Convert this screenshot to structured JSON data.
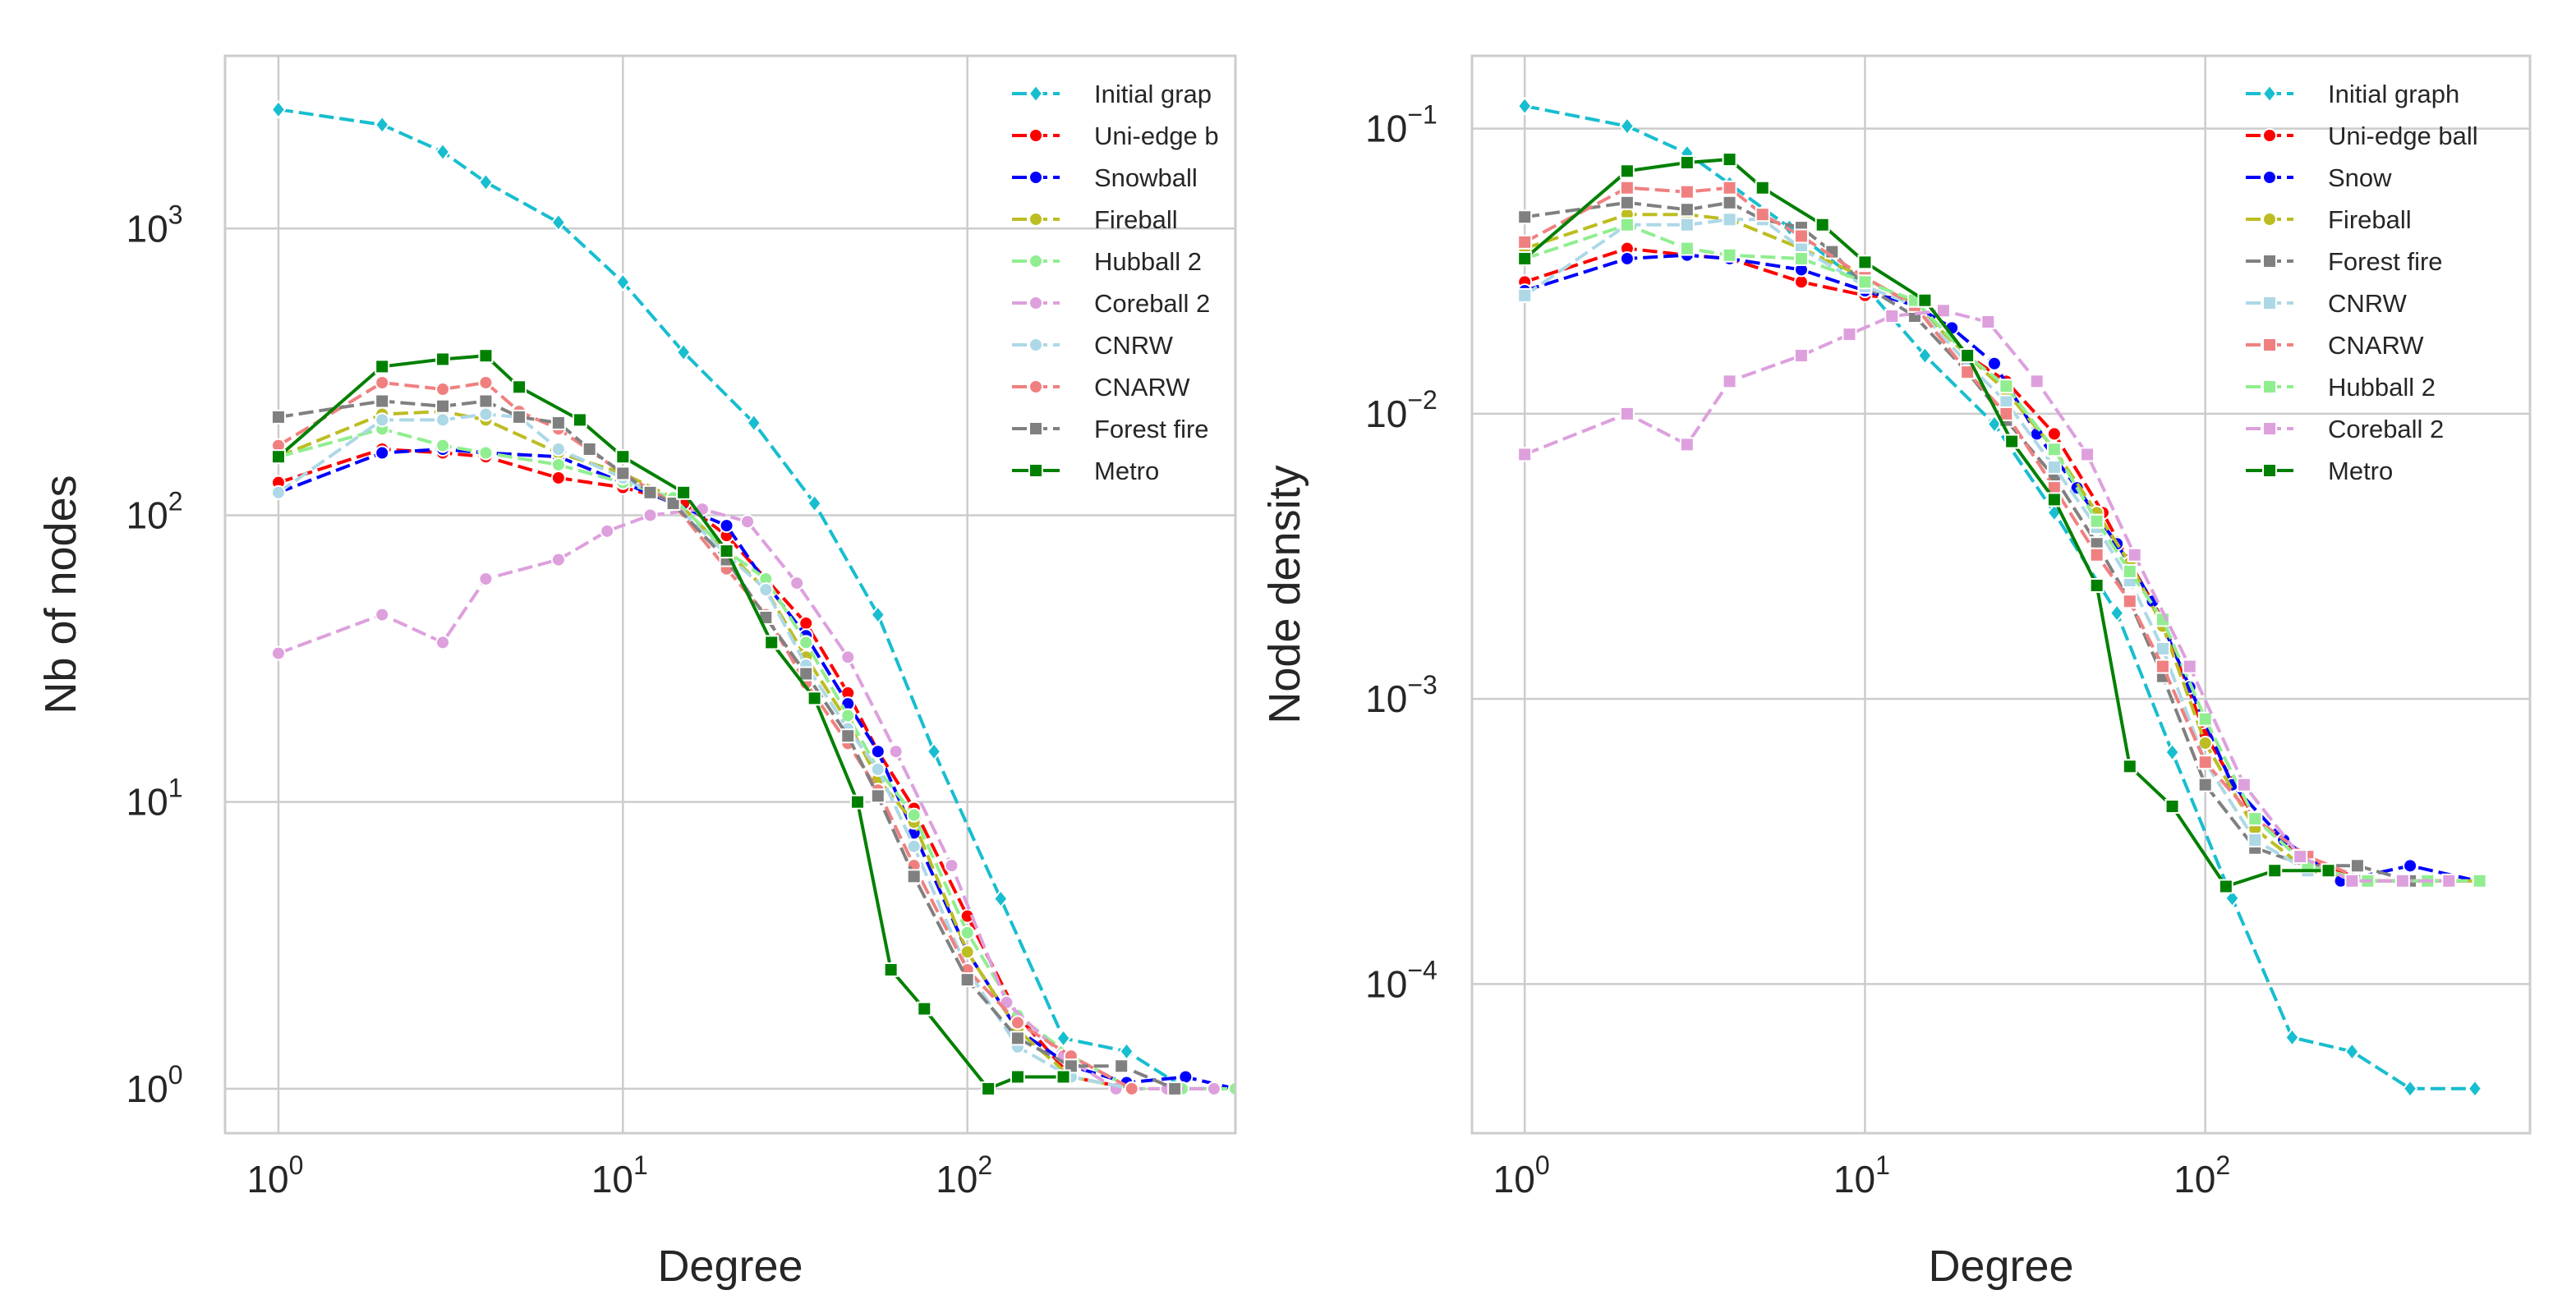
{
  "chart_data": [
    {
      "type": "line",
      "xscale": "log",
      "yscale": "log",
      "title": "",
      "xlabel": "Degree",
      "ylabel": "Nb of nodes",
      "xlim": [
        0.7,
        600
      ],
      "ylim": [
        0.7,
        4000
      ],
      "xticks": [
        {
          "value": 1,
          "base": "10",
          "exp": "0"
        },
        {
          "value": 10,
          "base": "10",
          "exp": "1"
        },
        {
          "value": 100,
          "base": "10",
          "exp": "2"
        }
      ],
      "yticks": [
        {
          "value": 1,
          "base": "10",
          "exp": "0"
        },
        {
          "value": 10,
          "base": "10",
          "exp": "1"
        },
        {
          "value": 100,
          "base": "10",
          "exp": "2"
        },
        {
          "value": 1000,
          "base": "10",
          "exp": "3"
        }
      ],
      "grid": true,
      "legend_position": "top-right",
      "series": [
        {
          "name": "Initial graph",
          "legend_label": "Initial grap",
          "color": "#17becf",
          "marker": "diamond",
          "x": [
            1,
            2,
            3,
            4,
            6.5,
            10,
            15,
            24,
            36,
            55,
            80,
            125,
            190,
            290,
            430,
            620
          ],
          "y": [
            2600,
            2300,
            1850,
            1450,
            1050,
            650,
            370,
            210,
            110,
            45,
            15,
            4.6,
            1.5,
            1.35,
            1.0,
            1.0
          ]
        },
        {
          "name": "Uni-edge ball",
          "legend_label": "Uni-edge b",
          "color": "#ff0000",
          "marker": "circle",
          "x": [
            1,
            2,
            3,
            4,
            6.5,
            10,
            15,
            20,
            26,
            34,
            45,
            55,
            70,
            100,
            140,
            200,
            300
          ],
          "y": [
            130,
            170,
            165,
            160,
            135,
            125,
            110,
            85,
            60,
            42,
            24,
            15,
            9.5,
            4.0,
            1.8,
            1.1,
            1.0
          ]
        },
        {
          "name": "Snowball",
          "legend_label": "Snowball",
          "color": "#0000ff",
          "marker": "circle",
          "x": [
            1,
            2,
            3,
            4,
            6.5,
            10,
            14,
            20,
            26,
            34,
            45,
            55,
            70,
            100,
            140,
            200,
            290,
            430,
            600
          ],
          "y": [
            120,
            165,
            170,
            165,
            160,
            130,
            110,
            92,
            58,
            38,
            22,
            15,
            7.8,
            3.0,
            1.6,
            1.2,
            1.05,
            1.1,
            1.0
          ]
        },
        {
          "name": "Fireball",
          "legend_label": "Fireball",
          "color": "#bcbd22",
          "marker": "circle",
          "x": [
            1,
            2,
            3,
            4,
            6.5,
            10,
            14,
            20,
            26,
            34,
            45,
            55,
            70,
            100,
            140,
            200,
            300
          ],
          "y": [
            160,
            225,
            230,
            215,
            165,
            140,
            115,
            75,
            55,
            32,
            19,
            12,
            8.5,
            3.0,
            1.6,
            1.1,
            1.0
          ]
        },
        {
          "name": "Hubball 2",
          "legend_label": "Hubball 2",
          "color": "#90ee90",
          "marker": "circle",
          "x": [
            1,
            2,
            3,
            4,
            6.5,
            10,
            14,
            20,
            26,
            34,
            45,
            55,
            70,
            100,
            140,
            200,
            300,
            420,
            600
          ],
          "y": [
            160,
            200,
            175,
            165,
            150,
            130,
            115,
            75,
            60,
            36,
            20,
            13,
            9.0,
            3.5,
            1.8,
            1.3,
            1.0,
            1.0,
            1.0
          ]
        },
        {
          "name": "Coreball 2",
          "legend_label": "Coreball 2",
          "color": "#dda0dd",
          "marker": "circle",
          "x": [
            1,
            2,
            3,
            4,
            6.5,
            9,
            12,
            17,
            23,
            32,
            45,
            62,
            90,
            130,
            190,
            270,
            380,
            520
          ],
          "y": [
            33,
            45,
            36,
            60,
            70,
            88,
            100,
            105,
            95,
            58,
            32,
            15,
            6.0,
            2.0,
            1.3,
            1.0,
            1.0,
            1.0
          ]
        },
        {
          "name": "CNRW",
          "legend_label": "CNRW",
          "color": "#add8e6",
          "marker": "circle",
          "x": [
            1,
            2,
            3,
            4,
            5,
            6.5,
            10,
            14,
            20,
            26,
            34,
            45,
            55,
            70,
            100,
            140,
            200,
            300
          ],
          "y": [
            120,
            215,
            215,
            225,
            220,
            170,
            135,
            110,
            73,
            55,
            30,
            18,
            13,
            7.0,
            2.6,
            1.4,
            1.1,
            1.0
          ]
        },
        {
          "name": "CNARW",
          "legend_label": "CNARW",
          "color": "#f08080",
          "marker": "circle",
          "x": [
            1,
            2,
            3,
            4,
            5,
            6.5,
            10,
            14,
            20,
            26,
            34,
            45,
            55,
            70,
            100,
            140,
            200,
            300
          ],
          "y": [
            175,
            290,
            275,
            290,
            230,
            200,
            140,
            110,
            65,
            45,
            26,
            16,
            11,
            6.0,
            2.6,
            1.7,
            1.3,
            1.0
          ]
        },
        {
          "name": "Forest fire",
          "legend_label": "Forest fire",
          "color": "#808080",
          "marker": "square",
          "x": [
            1,
            2,
            3,
            4,
            5,
            6.5,
            8,
            10,
            12,
            14,
            20,
            26,
            34,
            45,
            55,
            70,
            100,
            140,
            200,
            280,
            400
          ],
          "y": [
            220,
            250,
            240,
            250,
            220,
            210,
            170,
            140,
            120,
            110,
            70,
            44,
            28,
            17,
            10.5,
            5.5,
            2.4,
            1.5,
            1.2,
            1.2,
            1.0
          ]
        },
        {
          "name": "Metro",
          "legend_label": "Metro",
          "color": "#008000",
          "marker": "square",
          "x": [
            1,
            2,
            3,
            4,
            5,
            7.5,
            10,
            15,
            20,
            27,
            36,
            48,
            60,
            75,
            115,
            140,
            190
          ],
          "y": [
            160,
            330,
            350,
            360,
            280,
            215,
            160,
            120,
            75,
            36,
            23,
            10,
            2.6,
            1.9,
            1.0,
            1.1,
            1.1
          ]
        }
      ]
    },
    {
      "type": "line",
      "xscale": "log",
      "yscale": "log",
      "title": "",
      "xlabel": "Degree",
      "ylabel": "Node density",
      "xlim": [
        0.7,
        900
      ],
      "ylim": [
        3e-05,
        0.18
      ],
      "xticks": [
        {
          "value": 1,
          "base": "10",
          "exp": "0"
        },
        {
          "value": 10,
          "base": "10",
          "exp": "1"
        },
        {
          "value": 100,
          "base": "10",
          "exp": "2"
        }
      ],
      "yticks": [
        {
          "value": 0.0001,
          "base": "10",
          "exp": "−4"
        },
        {
          "value": 0.001,
          "base": "10",
          "exp": "−3"
        },
        {
          "value": 0.01,
          "base": "10",
          "exp": "−2"
        },
        {
          "value": 0.1,
          "base": "10",
          "exp": "−1"
        }
      ],
      "grid": true,
      "legend_position": "top-right",
      "series": [
        {
          "name": "Initial graph",
          "legend_label": "Initial graph",
          "color": "#17becf",
          "marker": "diamond",
          "x": [
            1,
            2,
            3,
            4,
            6,
            10,
            15,
            24,
            36,
            55,
            80,
            120,
            180,
            270,
            400,
            620
          ],
          "y": [
            0.12,
            0.102,
            0.082,
            0.064,
            0.045,
            0.028,
            0.016,
            0.0092,
            0.0045,
            0.002,
            0.00065,
            0.0002,
            6.5e-05,
            5.8e-05,
            4.3e-05,
            4.3e-05
          ]
        },
        {
          "name": "Uni-edge ball",
          "legend_label": "Uni-edge ball",
          "color": "#ff0000",
          "marker": "circle",
          "x": [
            1,
            2,
            3,
            4,
            6.5,
            10,
            15,
            20,
            26,
            36,
            50,
            60,
            75,
            100,
            140,
            200,
            300,
            450,
            640
          ],
          "y": [
            0.029,
            0.038,
            0.036,
            0.035,
            0.029,
            0.026,
            0.025,
            0.016,
            0.013,
            0.0085,
            0.0045,
            0.003,
            0.0019,
            0.00075,
            0.00038,
            0.00027,
            0.00023,
            0.00023,
            0.00023
          ]
        },
        {
          "name": "Snow",
          "legend_label": "Snow",
          "color": "#0000ff",
          "marker": "circle",
          "x": [
            1,
            2,
            3,
            4,
            6.5,
            10,
            14,
            18,
            24,
            32,
            42,
            55,
            70,
            90,
            120,
            170,
            250,
            400,
            630
          ],
          "y": [
            0.027,
            0.035,
            0.036,
            0.035,
            0.032,
            0.027,
            0.024,
            0.02,
            0.015,
            0.0085,
            0.0055,
            0.0035,
            0.0022,
            0.0011,
            0.0005,
            0.00032,
            0.00023,
            0.00026,
            0.00023
          ]
        },
        {
          "name": "Fireball",
          "legend_label": "Fireball",
          "color": "#bcbd22",
          "marker": "circle",
          "x": [
            1,
            2,
            3,
            4,
            6.5,
            10,
            14,
            20,
            26,
            36,
            48,
            60,
            75,
            100,
            140,
            200,
            300,
            450,
            640
          ],
          "y": [
            0.038,
            0.05,
            0.05,
            0.048,
            0.038,
            0.03,
            0.024,
            0.016,
            0.012,
            0.0075,
            0.0045,
            0.003,
            0.0018,
            0.0007,
            0.00035,
            0.00025,
            0.00023,
            0.00023,
            0.00023
          ]
        },
        {
          "name": "Forest fire",
          "legend_label": "Forest fire",
          "color": "#808080",
          "marker": "square",
          "x": [
            1,
            2,
            3,
            4,
            5,
            6.5,
            8,
            10,
            14,
            20,
            26,
            36,
            48,
            60,
            75,
            100,
            140,
            200,
            280,
            400
          ],
          "y": [
            0.049,
            0.055,
            0.052,
            0.055,
            0.048,
            0.045,
            0.037,
            0.028,
            0.022,
            0.014,
            0.0095,
            0.006,
            0.0035,
            0.0022,
            0.0012,
            0.0005,
            0.0003,
            0.00026,
            0.00026,
            0.00023
          ]
        },
        {
          "name": "CNRW",
          "legend_label": "CNRW",
          "color": "#add8e6",
          "marker": "square",
          "x": [
            1,
            2,
            3,
            4,
            5,
            6.5,
            10,
            14,
            20,
            26,
            36,
            48,
            60,
            75,
            100,
            140,
            200,
            300
          ],
          "y": [
            0.026,
            0.046,
            0.046,
            0.048,
            0.048,
            0.038,
            0.028,
            0.024,
            0.015,
            0.011,
            0.0065,
            0.004,
            0.0026,
            0.0015,
            0.0006,
            0.00032,
            0.00025,
            0.00023
          ]
        },
        {
          "name": "CNARW",
          "legend_label": "CNARW",
          "color": "#f08080",
          "marker": "square",
          "x": [
            1,
            2,
            3,
            4,
            5,
            6.5,
            10,
            14,
            20,
            26,
            36,
            48,
            60,
            75,
            100,
            140,
            200,
            300,
            450,
            640
          ],
          "y": [
            0.04,
            0.062,
            0.06,
            0.062,
            0.05,
            0.042,
            0.03,
            0.024,
            0.014,
            0.01,
            0.0055,
            0.0032,
            0.0022,
            0.0013,
            0.0006,
            0.00038,
            0.00028,
            0.00023,
            0.00023,
            0.00023
          ]
        },
        {
          "name": "Hubball 2",
          "legend_label": "Hubball 2",
          "color": "#90ee90",
          "marker": "square",
          "x": [
            1,
            2,
            3,
            4,
            6.5,
            10,
            14,
            20,
            26,
            36,
            48,
            60,
            75,
            100,
            140,
            200,
            300,
            450,
            640
          ],
          "y": [
            0.035,
            0.046,
            0.038,
            0.036,
            0.035,
            0.029,
            0.025,
            0.016,
            0.0125,
            0.0075,
            0.0042,
            0.0028,
            0.0019,
            0.00085,
            0.00038,
            0.00026,
            0.00023,
            0.00023,
            0.00023
          ]
        },
        {
          "name": "Coreball 2",
          "legend_label": "Coreball 2",
          "color": "#dda0dd",
          "marker": "square",
          "x": [
            1,
            2,
            3,
            4,
            6.5,
            9,
            12,
            17,
            23,
            32,
            45,
            62,
            90,
            130,
            190,
            270,
            380,
            520
          ],
          "y": [
            0.0072,
            0.01,
            0.0078,
            0.013,
            0.016,
            0.019,
            0.022,
            0.023,
            0.021,
            0.013,
            0.0072,
            0.0032,
            0.0013,
            0.0005,
            0.00028,
            0.00023,
            0.00023,
            0.00023
          ]
        },
        {
          "name": "Metro",
          "legend_label": "Metro",
          "color": "#008000",
          "marker": "square",
          "x": [
            1,
            2,
            3,
            4,
            5,
            7.5,
            10,
            15,
            20,
            27,
            36,
            48,
            60,
            80,
            115,
            160,
            230
          ],
          "y": [
            0.035,
            0.071,
            0.076,
            0.078,
            0.062,
            0.046,
            0.034,
            0.025,
            0.016,
            0.008,
            0.005,
            0.0025,
            0.00058,
            0.00042,
            0.00022,
            0.00025,
            0.00025
          ]
        }
      ]
    }
  ]
}
